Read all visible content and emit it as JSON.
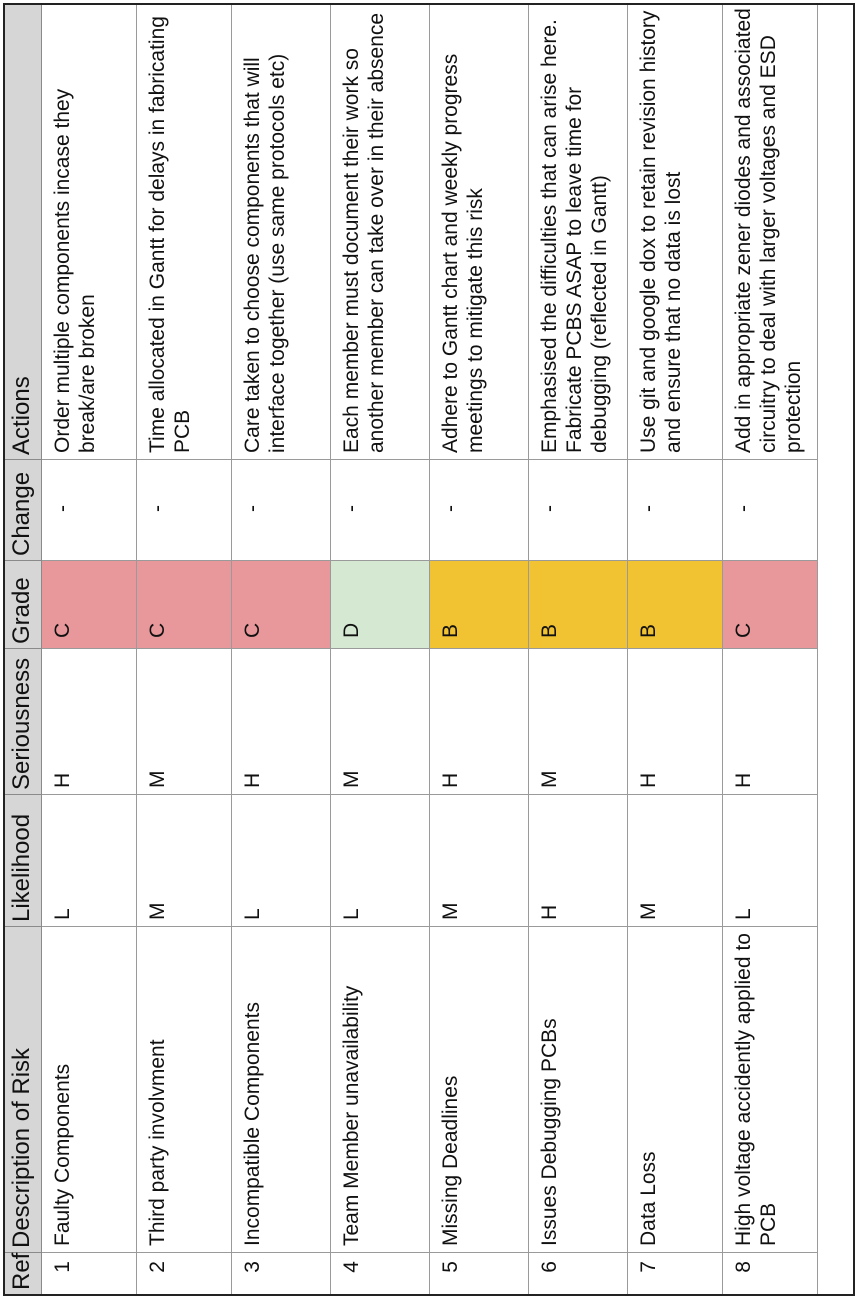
{
  "headers": [
    "Ref",
    "Description of Risk",
    "Likelihood",
    "Seriousness",
    "Grade",
    "Change",
    "Actions"
  ],
  "rows": [
    {
      "ref": "1",
      "description": "Faulty Components",
      "likelihood": "L",
      "seriousness": "H",
      "grade": "C",
      "change": "-",
      "actions": "Order multiple components incase they break/are broken"
    },
    {
      "ref": "2",
      "description": "Third party involvment",
      "likelihood": "M",
      "seriousness": "M",
      "grade": "C",
      "change": "-",
      "actions": "Time allocated in Gantt for delays in fabricating PCB"
    },
    {
      "ref": "3",
      "description": "Incompatible Components",
      "likelihood": "L",
      "seriousness": "H",
      "grade": "C",
      "change": "-",
      "actions": "Care taken to choose components that will interface together (use same protocols etc)"
    },
    {
      "ref": "4",
      "description": "Team Member unavailability",
      "likelihood": "L",
      "seriousness": "M",
      "grade": "D",
      "change": "-",
      "actions": "Each member must document their work so another member can take over in their absence"
    },
    {
      "ref": "5",
      "description": "Missing Deadlines",
      "likelihood": "M",
      "seriousness": "H",
      "grade": "B",
      "change": "-",
      "actions": "Adhere to Gantt chart and weekly progress meetings to mitigate this risk"
    },
    {
      "ref": "6",
      "description": "Issues Debugging PCBs",
      "likelihood": "H",
      "seriousness": "M",
      "grade": "B",
      "change": "-",
      "actions": "Emphasised the difficulties that can arise here. Fabricate PCBS ASAP to leave time for debugging (reflected in Gantt)"
    },
    {
      "ref": "7",
      "description": "Data Loss",
      "likelihood": "M",
      "seriousness": "H",
      "grade": "B",
      "change": "-",
      "actions": "Use git and google dox to retain revision history and ensure that no data is lost"
    },
    {
      "ref": "8",
      "description": "High voltage accidently applied to PCB",
      "likelihood": "L",
      "seriousness": "H",
      "grade": "C",
      "change": "-",
      "actions": "Add in appropriate zener diodes and associated circuitry to deal with larger voltages and ESD protection"
    }
  ],
  "grade_colors": {
    "C": "#e8989a",
    "D": "#d5e8d1",
    "B": "#f1c232"
  },
  "header_color": "#d6d6d6"
}
